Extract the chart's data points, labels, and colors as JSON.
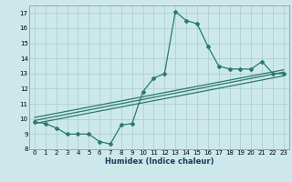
{
  "title": "",
  "xlabel": "Humidex (Indice chaleur)",
  "xlim": [
    -0.5,
    23.5
  ],
  "ylim": [
    8,
    17.5
  ],
  "yticks": [
    8,
    9,
    10,
    11,
    12,
    13,
    14,
    15,
    16,
    17
  ],
  "xticks": [
    0,
    1,
    2,
    3,
    4,
    5,
    6,
    7,
    8,
    9,
    10,
    11,
    12,
    13,
    14,
    15,
    16,
    17,
    18,
    19,
    20,
    21,
    22,
    23
  ],
  "bg_color": "#cce8ea",
  "grid_color": "#aacccc",
  "line_color": "#2a7a6a",
  "line_width": 0.9,
  "marker": "D",
  "marker_size": 2.0,
  "zigzag_x": [
    0,
    1,
    2,
    3,
    4,
    5,
    6,
    7,
    8,
    9,
    10,
    11,
    12,
    13,
    14,
    15,
    16,
    17,
    18,
    19,
    20,
    21,
    22,
    23
  ],
  "zigzag_y": [
    9.8,
    9.7,
    9.4,
    9.0,
    9.0,
    9.0,
    8.5,
    8.35,
    9.6,
    9.7,
    11.8,
    12.7,
    13.0,
    17.1,
    16.5,
    16.3,
    14.8,
    13.5,
    13.3,
    13.3,
    13.3,
    13.8,
    13.0,
    13.0
  ],
  "trend1_x": [
    0,
    23
  ],
  "trend1_y": [
    9.9,
    13.1
  ],
  "trend2_x": [
    0,
    23
  ],
  "trend2_y": [
    10.1,
    13.25
  ],
  "trend3_x": [
    0,
    23
  ],
  "trend3_y": [
    9.7,
    12.85
  ]
}
